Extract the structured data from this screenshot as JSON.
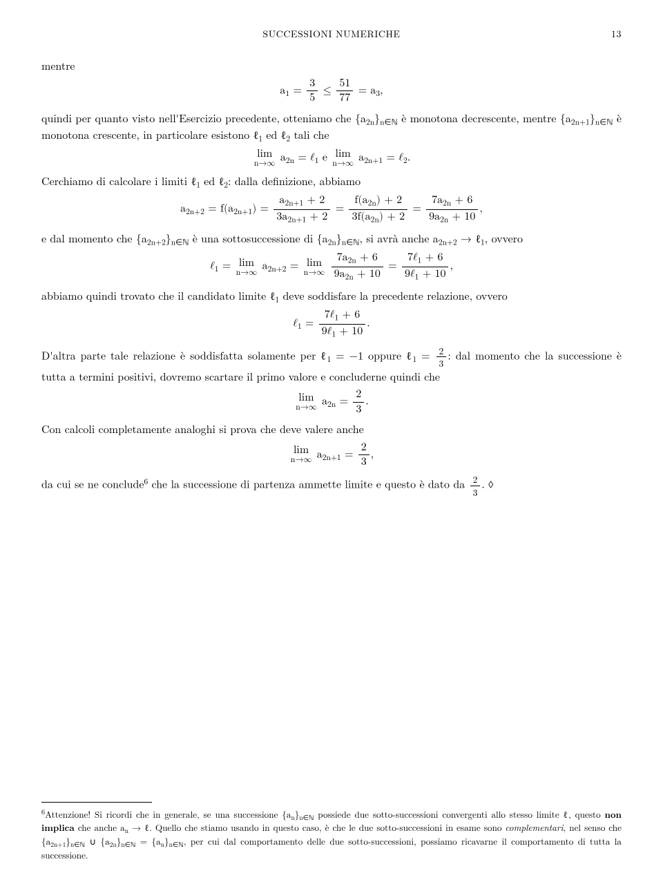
{
  "header": {
    "title": "SUCCESSIONI NUMERICHE",
    "page": "13"
  },
  "body": {
    "p1": "mentre",
    "eq1_lhs": "a",
    "eq1_sub1": "1",
    "eq1_eq": " = ",
    "eq1_f1n": "3",
    "eq1_f1d": "5",
    "eq1_le": " ≤ ",
    "eq1_f2n": "51",
    "eq1_f2d": "77",
    "eq1_rhs": " = a",
    "eq1_sub3": "3",
    "eq1_comma": ",",
    "p2a": "quindi per quanto visto nell'Esercizio precedente, otteniamo che {a",
    "p2_sub1": "2n",
    "p2b": "}",
    "p2_sub2": "n∈ℕ",
    "p2c": " è monotona decrescente, mentre {a",
    "p2_sub3": "2n+1",
    "p2d": "}",
    "p2_sub4": "n∈ℕ",
    "p2e": " è monotona crescente, in particolare esistono ℓ",
    "p2_sub5": "1",
    "p2f": " ed ℓ",
    "p2_sub6": "2",
    "p2g": " tali che",
    "eq2_lim": "lim",
    "eq2_limsub": "n→∞",
    "eq2_a": " a",
    "eq2_s1": "2n",
    "eq2_eq1": " = ℓ",
    "eq2_s2": "1",
    "eq2_e": "   e   ",
    "eq2_s3": "2n+1",
    "eq2_eq2": " = ℓ",
    "eq2_s4": "2",
    "eq2_dot": ".",
    "p3a": "Cerchiamo di calcolare i limiti ℓ",
    "p3_s1": "1",
    "p3b": " ed ℓ",
    "p3_s2": "2",
    "p3c": ": dalla definizione, abbiamo",
    "eq3_lhs": "a",
    "eq3_s1": "2n+2",
    "eq3_eq": " = f(a",
    "eq3_s2": "2n+1",
    "eq3_rp": ") = ",
    "eq3_f1n_a": "a",
    "eq3_f1n_s": "2n+1",
    "eq3_f1n_b": " + 2",
    "eq3_f1d_a": "3a",
    "eq3_f1d_s": "2n+1",
    "eq3_f1d_b": " + 2",
    "eq3_eq2": " = ",
    "eq3_f2n_a": "f(a",
    "eq3_f2n_s": "2n",
    "eq3_f2n_b": ") + 2",
    "eq3_f2d_a": "3f(a",
    "eq3_f2d_s": "2n",
    "eq3_f2d_b": ") + 2",
    "eq3_eq3": " = ",
    "eq3_f3n_a": "7a",
    "eq3_f3n_s": "2n",
    "eq3_f3n_b": " + 6",
    "eq3_f3d_a": "9a",
    "eq3_f3d_s": "2n",
    "eq3_f3d_b": " + 10",
    "eq3_comma": ",",
    "p4a": "e dal momento che {a",
    "p4_s1": "2n+2",
    "p4b": "}",
    "p4_s2": "n∈ℕ",
    "p4c": " è una sottosuccessione di {a",
    "p4_s3": "2n",
    "p4d": "}",
    "p4_s4": "n∈ℕ",
    "p4e": ", si avrà anche a",
    "p4_s5": "2n+2",
    "p4f": " → ℓ",
    "p4_s6": "1",
    "p4g": ", ovvero",
    "eq4_l": "ℓ",
    "eq4_ls1": "1",
    "eq4_eq": " = ",
    "eq4_lim": "lim",
    "eq4_limsub": "n→∞",
    "eq4_a": " a",
    "eq4_as": "2n+2",
    "eq4_eq2": " = ",
    "eq4_f1n_a": "7a",
    "eq4_f1n_s": "2n",
    "eq4_f1n_b": " + 6",
    "eq4_f1d_a": "9a",
    "eq4_f1d_s": "2n",
    "eq4_f1d_b": " + 10",
    "eq4_eq3": " = ",
    "eq4_f2n": "7ℓ",
    "eq4_f2n_s": "1",
    "eq4_f2n_b": " + 6",
    "eq4_f2d": "9ℓ",
    "eq4_f2d_s": "1",
    "eq4_f2d_b": " + 10",
    "eq4_comma": ",",
    "p5a": "abbiamo quindi trovato che il candidato limite ℓ",
    "p5_s1": "1",
    "p5b": " deve soddisfare la precedente relazione, ovvero",
    "eq5_l": "ℓ",
    "eq5_s1": "1",
    "eq5_eq": " = ",
    "eq5_fn": "7ℓ",
    "eq5_fn_s": "1",
    "eq5_fn_b": " + 6",
    "eq5_fd": "9ℓ",
    "eq5_fd_s": "1",
    "eq5_fd_b": " + 10",
    "eq5_dot": ".",
    "p6a": "D'altra parte tale relazione è soddisfatta solamente per ℓ",
    "p6_s1": "1",
    "p6b": " = −1 oppure ℓ",
    "p6_s2": "1",
    "p6c": " = ",
    "p6_fn": "2",
    "p6_fd": "3",
    "p6d": ": dal momento che la successione è tutta a termini positivi, dovremo scartare il primo valore e concluderne quindi che",
    "eq6_lim": "lim",
    "eq6_limsub": "n→∞",
    "eq6_a": " a",
    "eq6_as": "2n",
    "eq6_eq": " = ",
    "eq6_fn": "2",
    "eq6_fd": "3",
    "eq6_dot": ".",
    "p7": "Con calcoli completamente analoghi si prova che deve valere anche",
    "eq7_lim": "lim",
    "eq7_limsub": "n→∞",
    "eq7_a": " a",
    "eq7_as": "2n+1",
    "eq7_eq": " = ",
    "eq7_fn": "2",
    "eq7_fd": "3",
    "eq7_comma": ",",
    "p8a": "da cui se ne conclude",
    "p8_sup": "6",
    "p8b": " che la successione di partenza ammette limite e questo è dato da ",
    "p8_fn": "2",
    "p8_fd": "3",
    "p8c": ". ",
    "p8_diamond": "◊"
  },
  "footnote": {
    "mark": "6",
    "a": "Attenzione! Si ricordi che in generale, se una successione {a",
    "s1": "n",
    "b": "}",
    "s2": "n∈ℕ",
    "c": " possiede due sotto-successioni convergenti allo stesso limite ℓ, questo ",
    "bold": "non implica",
    "d": " che anche a",
    "s3": "n",
    "e": " → ℓ. Quello che stiamo usando in questo caso, è che le due sotto-successioni in esame sono ",
    "ital": "complementari",
    "f": ", nel senso che {a",
    "s4": "2n+1",
    "g": "}",
    "s5": "n∈ℕ",
    "h": " ∪ {a",
    "s6": "2n",
    "i": "}",
    "s7": "n∈ℕ",
    "j": " = {a",
    "s8": "n",
    "k": "}",
    "s9": "n∈ℕ",
    "l": ", per cui dal comportamento delle due sotto-successioni, possiamo ricavarne il comportamento di tutta la successione."
  }
}
